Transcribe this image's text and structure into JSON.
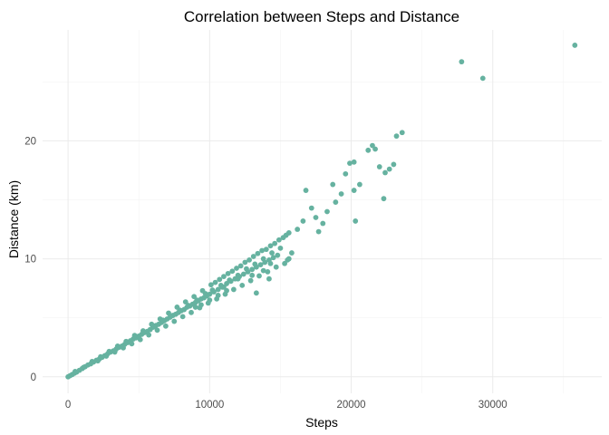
{
  "chart_data": {
    "type": "scatter",
    "title": "Correlation between Steps and Distance",
    "xlabel": "Steps",
    "ylabel": "Distance (km)",
    "xlim": [
      -1800,
      37700
    ],
    "ylim": [
      -1.4,
      29.4
    ],
    "x_ticks": [
      0,
      10000,
      20000,
      30000
    ],
    "x_tick_labels": [
      "0",
      "10000",
      "20000",
      "30000"
    ],
    "y_ticks": [
      0,
      10,
      20
    ],
    "y_tick_labels": [
      "0",
      "10",
      "20"
    ],
    "grid": true,
    "legend": "none",
    "point_color": "#66B2A0",
    "points": [
      [
        0,
        0
      ],
      [
        150,
        0.1
      ],
      [
        300,
        0.2
      ],
      [
        450,
        0.3
      ],
      [
        600,
        0.4
      ],
      [
        800,
        0.55
      ],
      [
        1000,
        0.7
      ],
      [
        1200,
        0.85
      ],
      [
        1400,
        1.0
      ],
      [
        1600,
        1.1
      ],
      [
        1800,
        1.25
      ],
      [
        2000,
        1.4
      ],
      [
        2200,
        1.5
      ],
      [
        2400,
        1.65
      ],
      [
        2600,
        1.8
      ],
      [
        2800,
        1.95
      ],
      [
        3000,
        2.1
      ],
      [
        3200,
        2.2
      ],
      [
        3400,
        2.35
      ],
      [
        3600,
        2.5
      ],
      [
        3800,
        2.6
      ],
      [
        4000,
        2.75
      ],
      [
        4200,
        2.9
      ],
      [
        4400,
        3.05
      ],
      [
        4600,
        3.2
      ],
      [
        4800,
        3.3
      ],
      [
        5000,
        3.45
      ],
      [
        5200,
        3.6
      ],
      [
        5400,
        3.75
      ],
      [
        5600,
        3.85
      ],
      [
        5800,
        4.0
      ],
      [
        6000,
        4.2
      ],
      [
        6200,
        4.35
      ],
      [
        6400,
        4.45
      ],
      [
        6600,
        4.6
      ],
      [
        6800,
        4.75
      ],
      [
        7000,
        4.9
      ],
      [
        7200,
        5.05
      ],
      [
        7400,
        5.2
      ],
      [
        7600,
        5.3
      ],
      [
        7800,
        5.45
      ],
      [
        8000,
        5.6
      ],
      [
        8200,
        5.7
      ],
      [
        8400,
        5.9
      ],
      [
        8600,
        6.0
      ],
      [
        8800,
        6.15
      ],
      [
        9000,
        6.3
      ],
      [
        9200,
        6.45
      ],
      [
        9400,
        6.6
      ],
      [
        9600,
        6.7
      ],
      [
        9800,
        6.85
      ],
      [
        10000,
        7.0
      ],
      [
        10300,
        7.2
      ],
      [
        10600,
        7.4
      ],
      [
        10900,
        7.6
      ],
      [
        11200,
        7.9
      ],
      [
        11500,
        8.1
      ],
      [
        11800,
        8.3
      ],
      [
        12100,
        8.5
      ],
      [
        12400,
        8.7
      ],
      [
        12700,
        8.9
      ],
      [
        13000,
        9.1
      ],
      [
        13300,
        9.3
      ],
      [
        13600,
        9.5
      ],
      [
        13900,
        9.7
      ],
      [
        14200,
        9.9
      ],
      [
        14500,
        10.1
      ],
      [
        14800,
        10.3
      ],
      [
        500,
        0.45
      ],
      [
        1100,
        0.8
      ],
      [
        1700,
        1.3
      ],
      [
        2300,
        1.7
      ],
      [
        2900,
        2.15
      ],
      [
        3500,
        2.6
      ],
      [
        4100,
        3.0
      ],
      [
        4700,
        3.5
      ],
      [
        5300,
        3.9
      ],
      [
        5900,
        4.45
      ],
      [
        6500,
        4.9
      ],
      [
        7100,
        5.4
      ],
      [
        7700,
        5.9
      ],
      [
        8300,
        6.35
      ],
      [
        8900,
        6.8
      ],
      [
        9500,
        7.3
      ],
      [
        10100,
        7.8
      ],
      [
        10700,
        8.25
      ],
      [
        11300,
        8.75
      ],
      [
        11900,
        9.2
      ],
      [
        12500,
        9.7
      ],
      [
        13100,
        10.2
      ],
      [
        13700,
        10.7
      ],
      [
        14300,
        11.1
      ],
      [
        14900,
        11.6
      ],
      [
        15400,
        12.0
      ],
      [
        15600,
        12.2
      ],
      [
        2100,
        1.35
      ],
      [
        2700,
        1.75
      ],
      [
        3300,
        2.1
      ],
      [
        3900,
        2.45
      ],
      [
        4500,
        2.8
      ],
      [
        5100,
        3.15
      ],
      [
        5700,
        3.55
      ],
      [
        6300,
        3.95
      ],
      [
        6900,
        4.3
      ],
      [
        7500,
        4.7
      ],
      [
        8100,
        5.1
      ],
      [
        8700,
        5.45
      ],
      [
        9300,
        5.85
      ],
      [
        9900,
        6.25
      ],
      [
        10500,
        6.6
      ],
      [
        11100,
        7.0
      ],
      [
        11700,
        7.4
      ],
      [
        12300,
        7.75
      ],
      [
        12900,
        8.15
      ],
      [
        13500,
        8.55
      ],
      [
        14100,
        8.9
      ],
      [
        14700,
        9.3
      ],
      [
        15300,
        9.6
      ],
      [
        15500,
        9.9
      ],
      [
        15600,
        10.0
      ],
      [
        6100,
        4.25
      ],
      [
        6700,
        4.8
      ],
      [
        7300,
        5.15
      ],
      [
        7900,
        5.65
      ],
      [
        8500,
        6.05
      ],
      [
        9100,
        6.5
      ],
      [
        9700,
        7.05
      ],
      [
        10200,
        7.35
      ],
      [
        10800,
        7.75
      ],
      [
        11400,
        8.2
      ],
      [
        12000,
        8.6
      ],
      [
        12600,
        9.15
      ],
      [
        13200,
        9.55
      ],
      [
        13800,
        10.0
      ],
      [
        14400,
        10.5
      ],
      [
        15000,
        10.9
      ],
      [
        10400,
        8.0
      ],
      [
        11000,
        8.5
      ],
      [
        11600,
        8.95
      ],
      [
        12200,
        9.4
      ],
      [
        12800,
        9.9
      ],
      [
        13400,
        10.45
      ],
      [
        14000,
        10.8
      ],
      [
        14600,
        11.3
      ],
      [
        15200,
        11.8
      ],
      [
        11000,
        7.6
      ],
      [
        12000,
        8.3
      ],
      [
        13000,
        8.6
      ],
      [
        13800,
        9.0
      ],
      [
        14300,
        9.6
      ],
      [
        9000,
        5.9
      ],
      [
        9400,
        6.1
      ],
      [
        10000,
        6.5
      ],
      [
        10600,
        6.9
      ],
      [
        11200,
        7.3
      ],
      [
        13300,
        7.1
      ],
      [
        14200,
        8.3
      ],
      [
        15800,
        10.5
      ],
      [
        16200,
        12.5
      ],
      [
        16600,
        13.2
      ],
      [
        16800,
        15.8
      ],
      [
        17200,
        14.3
      ],
      [
        17500,
        13.5
      ],
      [
        17700,
        12.3
      ],
      [
        18000,
        13.0
      ],
      [
        18300,
        14.0
      ],
      [
        18700,
        16.3
      ],
      [
        18900,
        14.8
      ],
      [
        19300,
        15.5
      ],
      [
        19600,
        17.2
      ],
      [
        19900,
        18.1
      ],
      [
        20200,
        18.2
      ],
      [
        20200,
        15.8
      ],
      [
        20300,
        13.2
      ],
      [
        20600,
        16.3
      ],
      [
        21200,
        19.2
      ],
      [
        21500,
        19.6
      ],
      [
        21700,
        19.3
      ],
      [
        22000,
        17.8
      ],
      [
        22300,
        15.1
      ],
      [
        22400,
        17.3
      ],
      [
        22700,
        17.6
      ],
      [
        23000,
        18.0
      ],
      [
        23200,
        20.4
      ],
      [
        23600,
        20.7
      ],
      [
        27800,
        26.7
      ],
      [
        29300,
        25.3
      ],
      [
        35800,
        28.1
      ]
    ]
  }
}
